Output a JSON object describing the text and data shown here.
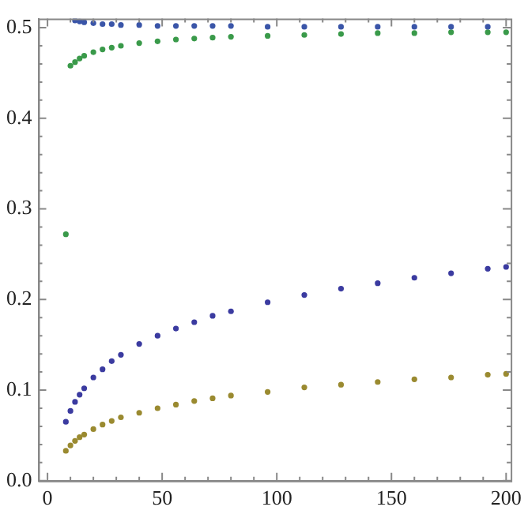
{
  "chart_data": {
    "type": "scatter",
    "marker": "circle",
    "grid": false,
    "legend": false,
    "x": [
      8,
      10,
      12,
      14,
      16,
      20,
      24,
      28,
      32,
      40,
      48,
      56,
      64,
      72,
      80,
      96,
      112,
      128,
      144,
      160,
      176,
      192,
      200
    ],
    "series": [
      {
        "color": "#3a55a8",
        "values": [
          null,
          null,
          0.508,
          0.507,
          0.506,
          0.505,
          0.504,
          0.504,
          0.503,
          0.503,
          0.502,
          0.502,
          0.502,
          0.502,
          0.502,
          0.501,
          0.501,
          0.501,
          0.501,
          0.501,
          0.501,
          0.501,
          null
        ]
      },
      {
        "color": "#3a9a4a",
        "values": [
          0.272,
          0.458,
          0.462,
          0.466,
          0.469,
          0.473,
          0.476,
          0.478,
          0.48,
          0.483,
          0.485,
          0.487,
          0.488,
          0.489,
          0.49,
          0.491,
          0.492,
          0.493,
          0.494,
          0.494,
          0.495,
          0.495,
          0.495
        ]
      },
      {
        "color": "#3b3ba0",
        "values": [
          0.065,
          0.077,
          0.087,
          0.095,
          0.102,
          0.114,
          0.123,
          0.132,
          0.139,
          0.151,
          0.16,
          0.168,
          0.175,
          0.182,
          0.187,
          0.197,
          0.205,
          0.212,
          0.218,
          0.224,
          0.229,
          0.234,
          0.236
        ]
      },
      {
        "color": "#9a8a30",
        "values": [
          0.033,
          0.039,
          0.044,
          0.048,
          0.051,
          0.057,
          0.062,
          0.066,
          0.07,
          0.075,
          0.08,
          0.084,
          0.088,
          0.091,
          0.094,
          0.098,
          0.103,
          0.106,
          0.109,
          0.112,
          0.114,
          0.117,
          0.118
        ]
      }
    ],
    "xlim": [
      -4,
      202
    ],
    "xticks": [
      0,
      {
        "value": 10,
        "label": null
      },
      {
        "value": 20,
        "label": null
      },
      {
        "value": 30,
        "label": null
      },
      {
        "value": 40,
        "label": null
      },
      50,
      {
        "value": 60,
        "label": null
      },
      {
        "value": 70,
        "label": null
      },
      {
        "value": 80,
        "label": null
      },
      {
        "value": 90,
        "label": null
      },
      100,
      {
        "value": 110,
        "label": null
      },
      {
        "value": 120,
        "label": null
      },
      {
        "value": 130,
        "label": null
      },
      {
        "value": 140,
        "label": null
      },
      150,
      {
        "value": 160,
        "label": null
      },
      {
        "value": 170,
        "label": null
      },
      {
        "value": 180,
        "label": null
      },
      {
        "value": 190,
        "label": null
      },
      200
    ],
    "ylim": [
      0,
      0.51
    ],
    "yticks": [
      {
        "value": 0,
        "label": "0.0"
      },
      {
        "value": 0.02,
        "label": null
      },
      {
        "value": 0.04,
        "label": null
      },
      {
        "value": 0.06,
        "label": null
      },
      {
        "value": 0.08,
        "label": null
      },
      0.1,
      {
        "value": 0.12,
        "label": null
      },
      {
        "value": 0.14,
        "label": null
      },
      {
        "value": 0.16,
        "label": null
      },
      {
        "value": 0.18,
        "label": null
      },
      0.2,
      {
        "value": 0.22,
        "label": null
      },
      {
        "value": 0.24,
        "label": null
      },
      {
        "value": 0.26,
        "label": null
      },
      {
        "value": 0.28,
        "label": null
      },
      0.3,
      {
        "value": 0.32,
        "label": null
      },
      {
        "value": 0.34,
        "label": null
      },
      {
        "value": 0.36,
        "label": null
      },
      {
        "value": 0.38,
        "label": null
      },
      0.4,
      {
        "value": 0.42,
        "label": null
      },
      {
        "value": 0.44,
        "label": null
      },
      {
        "value": 0.46,
        "label": null
      },
      {
        "value": 0.48,
        "label": null
      },
      0.5
    ]
  }
}
